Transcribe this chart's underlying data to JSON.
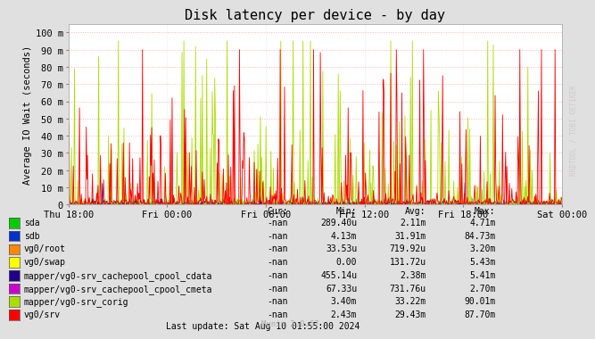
{
  "title": "Disk latency per device - by day",
  "ylabel": "Average IO Wait (seconds)",
  "background_color": "#e0e0e0",
  "plot_bg_color": "#ffffff",
  "grid_color": "#ffaaaa",
  "title_fontsize": 11,
  "axis_fontsize": 7.5,
  "tick_fontsize": 7.5,
  "yticks": [
    0,
    10,
    20,
    30,
    40,
    50,
    60,
    70,
    80,
    90,
    100
  ],
  "ytick_labels": [
    "0",
    "10 m",
    "20 m",
    "30 m",
    "40 m",
    "50 m",
    "60 m",
    "70 m",
    "80 m",
    "90 m",
    "100 m"
  ],
  "ylim": [
    0,
    105
  ],
  "xtick_labels": [
    "Thu 18:00",
    "Fri 00:00",
    "Fri 06:00",
    "Fri 12:00",
    "Fri 18:00",
    "Sat 00:00"
  ],
  "series": [
    {
      "name": "sda",
      "color": "#00cc00"
    },
    {
      "name": "sdb",
      "color": "#0033cc"
    },
    {
      "name": "vg0/root",
      "color": "#ff8800"
    },
    {
      "name": "vg0/swap",
      "color": "#ffff00"
    },
    {
      "name": "mapper/vg0-srv_cachepool_cpool_cdata",
      "color": "#220088"
    },
    {
      "name": "mapper/vg0-srv_cachepool_cpool_cmeta",
      "color": "#cc00cc"
    },
    {
      "name": "mapper/vg0-srv_corig",
      "color": "#aadd00"
    },
    {
      "name": "vg0/srv",
      "color": "#ff0000"
    }
  ],
  "legend_data": [
    {
      "name": "sda",
      "cur": "-nan",
      "min": "289.40u",
      "avg": "2.11m",
      "max": "4.71m"
    },
    {
      "name": "sdb",
      "cur": "-nan",
      "min": "4.13m",
      "avg": "31.91m",
      "max": "84.73m"
    },
    {
      "name": "vg0/root",
      "cur": "-nan",
      "min": "33.53u",
      "avg": "719.92u",
      "max": "3.20m"
    },
    {
      "name": "vg0/swap",
      "cur": "-nan",
      "min": "0.00",
      "avg": "131.72u",
      "max": "5.43m"
    },
    {
      "name": "mapper/vg0-srv_cachepool_cpool_cdata",
      "cur": "-nan",
      "min": "455.14u",
      "avg": "2.38m",
      "max": "5.41m"
    },
    {
      "name": "mapper/vg0-srv_cachepool_cpool_cmeta",
      "cur": "-nan",
      "min": "67.33u",
      "avg": "731.76u",
      "max": "2.70m"
    },
    {
      "name": "mapper/vg0-srv_corig",
      "cur": "-nan",
      "min": "3.40m",
      "avg": "33.22m",
      "max": "90.01m"
    },
    {
      "name": "vg0/srv",
      "cur": "-nan",
      "min": "2.43m",
      "avg": "29.43m",
      "max": "87.70m"
    }
  ],
  "last_update": "Last update: Sat Aug 10 01:55:00 2024",
  "munin_version": "Munin 2.0.67",
  "watermark": "RRDTOOL / TOBI OETIKER"
}
